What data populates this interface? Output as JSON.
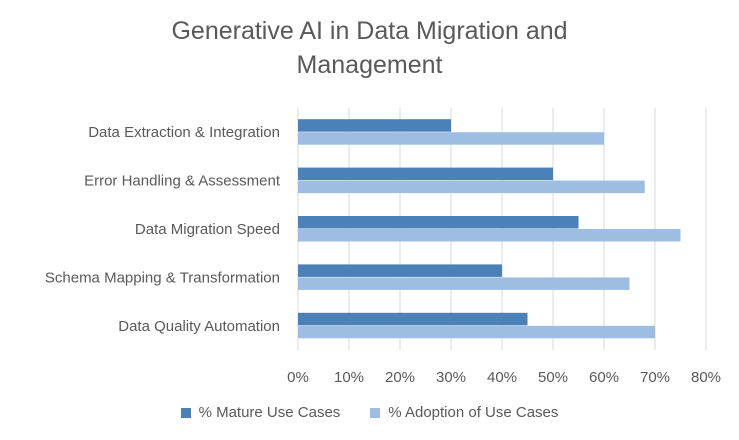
{
  "chart_data": {
    "type": "bar",
    "orientation": "horizontal",
    "title": "Generative AI in Data Migration and Management",
    "title_lines": [
      "Generative AI in Data Migration and",
      "Management"
    ],
    "categories": [
      "Data Extraction & Integration",
      "Error Handling & Assessment",
      "Data Migration Speed",
      "Schema Mapping & Transformation",
      "Data Quality Automation"
    ],
    "series": [
      {
        "name": "% Mature Use Cases",
        "color": "#4a81b8",
        "values": [
          30,
          50,
          55,
          40,
          45
        ]
      },
      {
        "name": "% Adoption of Use Cases",
        "color": "#9dbde2",
        "values": [
          60,
          68,
          75,
          65,
          70
        ]
      }
    ],
    "xlim": [
      0,
      80
    ],
    "xticks": [
      "0%",
      "10%",
      "20%",
      "30%",
      "40%",
      "50%",
      "60%",
      "70%",
      "80%"
    ],
    "grid": true,
    "legend_position": "bottom"
  }
}
